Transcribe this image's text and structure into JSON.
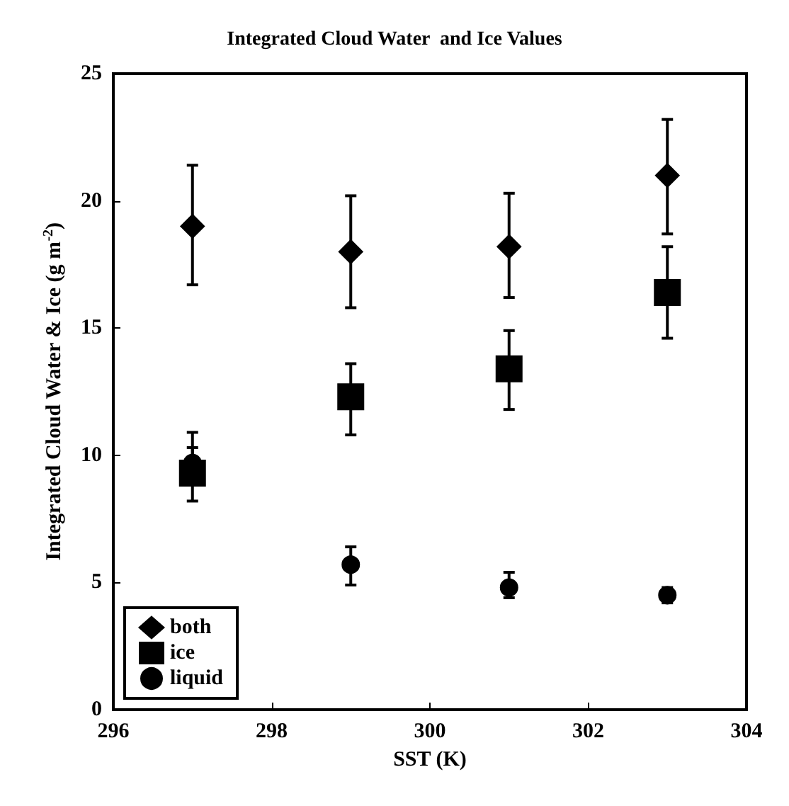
{
  "chart_data": {
    "type": "scatter",
    "title": "Integrated Cloud Water  and Ice Values",
    "xlabel": "SST (K)",
    "ylabel": "Integrated Cloud Water & Ice (g m$^{-2}$)",
    "x": [
      297,
      299,
      301,
      303
    ],
    "series": [
      {
        "name": "both",
        "color": "#000000",
        "marker": "diamond",
        "values": [
          19.0,
          18.0,
          18.2,
          21.0
        ],
        "errors": [
          [
            16.7,
            21.4
          ],
          [
            15.8,
            20.2
          ],
          [
            16.2,
            20.3
          ],
          [
            18.7,
            23.2
          ]
        ]
      },
      {
        "name": "ice",
        "color": "#000000",
        "marker": "square",
        "values": [
          9.3,
          12.3,
          13.4,
          16.4
        ],
        "errors": [
          [
            8.2,
            10.3
          ],
          [
            10.8,
            13.6
          ],
          [
            11.8,
            14.9
          ],
          [
            14.6,
            18.2
          ]
        ]
      },
      {
        "name": "liquid",
        "color": "#000000",
        "marker": "circle",
        "values": [
          9.7,
          5.7,
          4.8,
          4.5
        ],
        "errors": [
          [
            9.7,
            10.9
          ],
          [
            4.9,
            6.4
          ],
          [
            4.4,
            5.4
          ],
          [
            4.2,
            4.8
          ]
        ]
      }
    ],
    "xlim": [
      296,
      304
    ],
    "xticks": [
      296,
      298,
      300,
      302,
      304
    ],
    "ylim": [
      0,
      25
    ],
    "yticks": [
      0,
      5,
      10,
      15,
      20,
      25
    ],
    "grid": false,
    "legend": "bottom left"
  }
}
